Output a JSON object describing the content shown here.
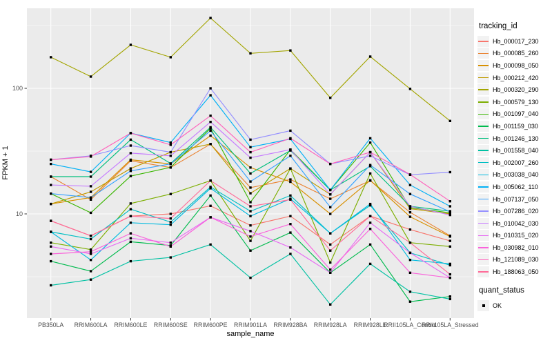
{
  "chart_data": {
    "type": "line",
    "title": "",
    "xlabel": "sample_name",
    "ylabel": "FPKM + 1",
    "y_scale": "log10",
    "y_ticks": [
      10,
      100
    ],
    "y_minor_ticks": [
      3.162,
      31.62,
      316.2
    ],
    "ylim": [
      1.6,
      420
    ],
    "grid": true,
    "panel_bg": "#EBEBEB",
    "grid_color": "#FFFFFF",
    "tick_label_color": "#4D4D4D",
    "point_color": "#000000",
    "point_shape": "square",
    "legend_title": "tracking_id",
    "legend_position": "right",
    "quant_legend": {
      "title": "quant_status",
      "items": [
        {
          "label": "OK",
          "shape": "square",
          "color": "#000000"
        }
      ]
    },
    "categories": [
      "PB350LA",
      "RRIM600LA",
      "RRIM600LE",
      "RRIM600SE",
      "RRIM600PE",
      "RRIM901LA",
      "RRIM928BA",
      "RRIM928LA",
      "RRIM928LE",
      "RRII105LA_Control",
      "RRII105LA_Stressed"
    ],
    "series": [
      {
        "name": "Hb_000017_230",
        "color": "#F8766D",
        "values": [
          8.8,
          6.7,
          9.6,
          10.0,
          11.6,
          8.1,
          9.6,
          5.7,
          9.6,
          7.5,
          6.1
        ]
      },
      {
        "name": "Hb_000085_260",
        "color": "#EA8331",
        "values": [
          19.8,
          13.0,
          26.5,
          23.4,
          36.0,
          16.2,
          18.8,
          13.2,
          18.4,
          10.3,
          6.7
        ]
      },
      {
        "name": "Hb_000098_050",
        "color": "#D89000",
        "values": [
          12.0,
          13.5,
          27.0,
          25.0,
          42.0,
          23.4,
          18.0,
          10.0,
          18.5,
          9.5,
          6.6
        ]
      },
      {
        "name": "Hb_000212_420",
        "color": "#C09B00",
        "values": [
          12.0,
          15.0,
          23.0,
          31.0,
          36.0,
          14.6,
          23.0,
          14.3,
          31.0,
          11.0,
          10.0
        ]
      },
      {
        "name": "Hb_000320_290",
        "color": "#A3A500",
        "values": [
          177,
          124,
          222,
          177,
          363,
          190,
          200,
          84,
          179,
          99,
          55
        ]
      },
      {
        "name": "Hb_000579_130",
        "color": "#7CAE00",
        "values": [
          5.9,
          5.2,
          12.1,
          14.4,
          18.4,
          6.1,
          23.0,
          4.1,
          21.0,
          5.9,
          5.5
        ]
      },
      {
        "name": "Hb_001097_040",
        "color": "#39B600",
        "values": [
          14.5,
          10.2,
          20.0,
          23.5,
          48.0,
          12.4,
          32.5,
          15.5,
          37.0,
          11.2,
          10.2
        ]
      },
      {
        "name": "Hb_001159_030",
        "color": "#00BB4E",
        "values": [
          4.2,
          3.5,
          6.0,
          5.6,
          14.0,
          5.1,
          7.1,
          3.4,
          5.7,
          2.0,
          2.2
        ]
      },
      {
        "name": "Hb_001246_130",
        "color": "#00BF7D",
        "values": [
          19.8,
          19.8,
          39.0,
          25.2,
          49.0,
          21.0,
          32.0,
          15.5,
          24.0,
          11.5,
          10.5
        ]
      },
      {
        "name": "Hb_001558_040",
        "color": "#00C1A3",
        "values": [
          2.7,
          3.0,
          4.2,
          4.5,
          5.7,
          3.1,
          4.8,
          1.9,
          4.0,
          2.4,
          2.1
        ]
      },
      {
        "name": "Hb_002007_260",
        "color": "#00BFC4",
        "values": [
          7.2,
          6.3,
          10.9,
          8.6,
          16.4,
          10.5,
          14.0,
          7.0,
          11.7,
          4.9,
          3.9
        ]
      },
      {
        "name": "Hb_003038_040",
        "color": "#00BAE0",
        "values": [
          7.2,
          4.3,
          8.5,
          8.2,
          16.0,
          9.6,
          13.2,
          7.0,
          12.0,
          4.3,
          4.0
        ]
      },
      {
        "name": "Hb_005062_110",
        "color": "#00B0F6",
        "values": [
          25.0,
          21.6,
          44.0,
          37.0,
          88.0,
          34.0,
          39.5,
          15.5,
          40.0,
          17.0,
          11.5
        ]
      },
      {
        "name": "Hb_007137_050",
        "color": "#35A2FF",
        "values": [
          14.5,
          13.5,
          22.0,
          25.0,
          46.0,
          18.1,
          29.0,
          11.3,
          24.5,
          14.4,
          10.4
        ]
      },
      {
        "name": "Hb_007286_020",
        "color": "#9590FF",
        "values": [
          27.0,
          29.0,
          35.0,
          31.0,
          100.0,
          39.0,
          46.0,
          25.0,
          29.0,
          20.5,
          21.5
        ]
      },
      {
        "name": "Hb_010042_030",
        "color": "#C77CFF",
        "values": [
          17.0,
          16.6,
          30.5,
          29.0,
          54.0,
          28.0,
          32.5,
          14.3,
          31.0,
          11.5,
          9.8
        ]
      },
      {
        "name": "Hb_010315_020",
        "color": "#E76BF3",
        "values": [
          5.5,
          4.8,
          6.4,
          5.9,
          9.4,
          7.3,
          5.4,
          3.4,
          8.5,
          4.9,
          3.1
        ]
      },
      {
        "name": "Hb_030982_010",
        "color": "#FA62DB",
        "values": [
          4.8,
          5.0,
          7.0,
          5.5,
          9.4,
          6.6,
          8.3,
          3.6,
          7.6,
          3.4,
          3.1
        ]
      },
      {
        "name": "Hb_121089_030",
        "color": "#FF62BC",
        "values": [
          27.0,
          28.6,
          44.0,
          35.5,
          60.5,
          31.0,
          40.0,
          25.0,
          31.0,
          20.6,
          12.6
        ]
      },
      {
        "name": "Hb_188063_050",
        "color": "#FF6A98",
        "values": [
          8.8,
          6.7,
          9.6,
          9.2,
          18.4,
          11.5,
          13.0,
          5.1,
          9.6,
          5.9,
          3.3
        ]
      }
    ]
  }
}
